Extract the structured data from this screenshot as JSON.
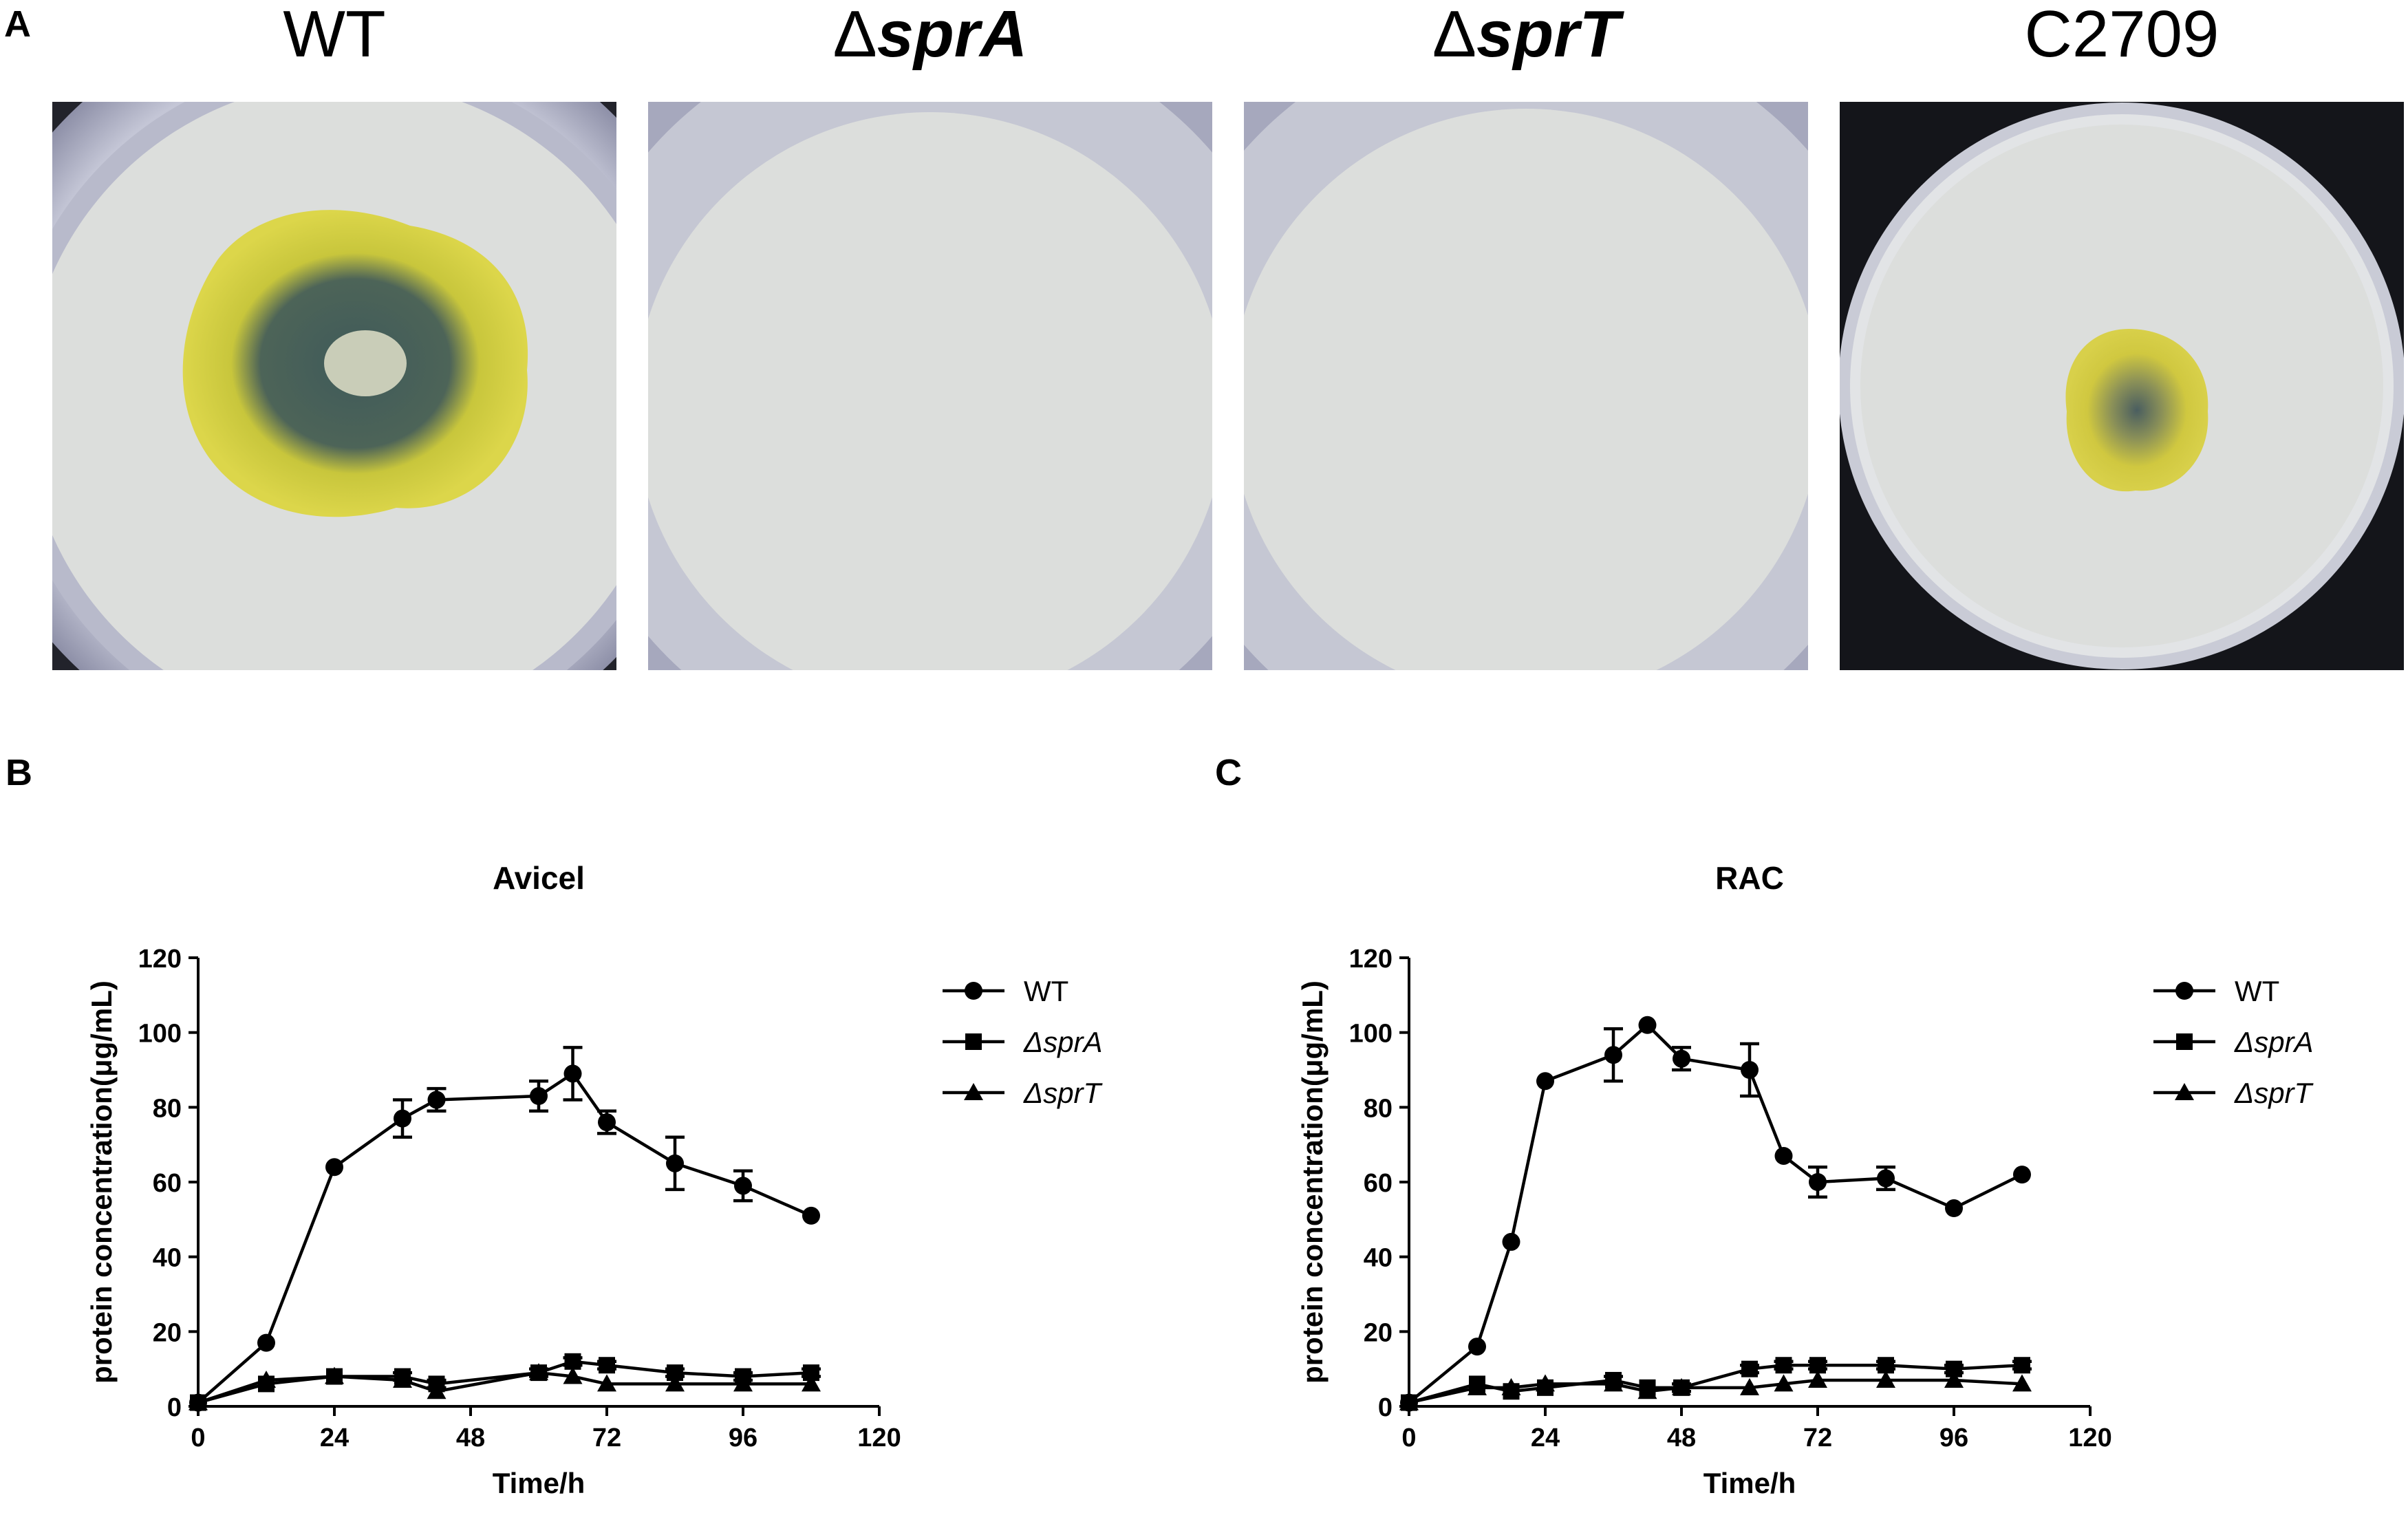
{
  "panels": {
    "a": "A",
    "b": "B",
    "c": "C"
  },
  "plates": [
    {
      "title_prefix": "",
      "title_italic": "",
      "title": "WT",
      "colony": "large"
    },
    {
      "title_prefix": "Δ",
      "title_italic": "sprA",
      "title": "",
      "colony": "none"
    },
    {
      "title_prefix": "Δ",
      "title_italic": "sprT",
      "title": "",
      "colony": "none"
    },
    {
      "title_prefix": "",
      "title_italic": "",
      "title": "C2709",
      "colony": "small"
    }
  ],
  "colors": {
    "colony_yellow": "#d8d23a",
    "colony_dark": "#3f5a5a",
    "filter_paper": "#dcdedc",
    "dish_rim": "#b4b6c8",
    "line": "#000000"
  },
  "legend": {
    "wt": "WT",
    "spra_prefix": "Δ",
    "spra": "sprA",
    "sprt_prefix": "Δ",
    "sprt": "sprT"
  },
  "chart_data": [
    {
      "type": "line",
      "title": "Avicel",
      "xlabel": "Time/h",
      "ylabel": "protein concentration(μg/mL)",
      "xlim": [
        0,
        120
      ],
      "ylim": [
        0,
        120
      ],
      "xticks": [
        0,
        24,
        48,
        72,
        96,
        120
      ],
      "yticks": [
        0,
        20,
        40,
        60,
        80,
        100,
        120
      ],
      "legend_position": "top-right",
      "series": [
        {
          "name": "WT",
          "marker": "circle",
          "x": [
            0,
            12,
            24,
            36,
            42,
            60,
            66,
            72,
            84,
            96,
            108
          ],
          "y": [
            1,
            17,
            64,
            77,
            82,
            83,
            89,
            76,
            65,
            59,
            51
          ],
          "err": [
            0,
            0,
            0,
            5,
            3,
            4,
            7,
            3,
            7,
            4,
            0
          ]
        },
        {
          "name": "ΔsprA",
          "marker": "square",
          "x": [
            0,
            12,
            24,
            36,
            42,
            60,
            66,
            72,
            84,
            96,
            108
          ],
          "y": [
            1,
            6,
            8,
            8,
            6,
            9,
            12,
            11,
            9,
            8,
            9
          ],
          "err": [
            0,
            0,
            0,
            1,
            1,
            1,
            1,
            1,
            1,
            1,
            1
          ]
        },
        {
          "name": "ΔsprT",
          "marker": "triangle",
          "x": [
            0,
            12,
            24,
            36,
            42,
            60,
            66,
            72,
            84,
            96,
            108
          ],
          "y": [
            1,
            7,
            8,
            7,
            4,
            9,
            8,
            6,
            6,
            6,
            6
          ],
          "err": [
            0,
            0,
            0,
            0,
            0,
            0,
            0,
            0,
            0,
            0,
            0
          ]
        }
      ]
    },
    {
      "type": "line",
      "title": "RAC",
      "xlabel": "Time/h",
      "ylabel": "protein concentration(μg/mL)",
      "xlim": [
        0,
        120
      ],
      "ylim": [
        0,
        120
      ],
      "xticks": [
        0,
        24,
        48,
        72,
        96,
        120
      ],
      "yticks": [
        0,
        20,
        40,
        60,
        80,
        100,
        120
      ],
      "legend_position": "top-right",
      "series": [
        {
          "name": "WT",
          "marker": "circle",
          "x": [
            0,
            12,
            18,
            24,
            36,
            42,
            48,
            60,
            66,
            72,
            84,
            96,
            108
          ],
          "y": [
            1,
            16,
            44,
            87,
            94,
            102,
            93,
            90,
            67,
            60,
            61,
            53,
            62
          ],
          "err": [
            0,
            0,
            0,
            0,
            7,
            0,
            3,
            7,
            0,
            4,
            3,
            0,
            0
          ]
        },
        {
          "name": "ΔsprA",
          "marker": "square",
          "x": [
            0,
            12,
            18,
            24,
            36,
            42,
            48,
            60,
            66,
            72,
            84,
            96,
            108
          ],
          "y": [
            1,
            6,
            4,
            5,
            7,
            5,
            5,
            10,
            11,
            11,
            11,
            10,
            11
          ],
          "err": [
            0,
            0,
            0,
            0,
            1,
            0,
            1,
            1,
            1,
            1,
            1,
            1,
            1
          ]
        },
        {
          "name": "ΔsprT",
          "marker": "triangle",
          "x": [
            0,
            12,
            18,
            24,
            36,
            42,
            48,
            60,
            66,
            72,
            84,
            96,
            108
          ],
          "y": [
            1,
            5,
            5,
            6,
            6,
            4,
            5,
            5,
            6,
            7,
            7,
            7,
            6
          ],
          "err": [
            0,
            0,
            0,
            0,
            0,
            0,
            0,
            0,
            0,
            0,
            0,
            0,
            0
          ]
        }
      ]
    }
  ]
}
